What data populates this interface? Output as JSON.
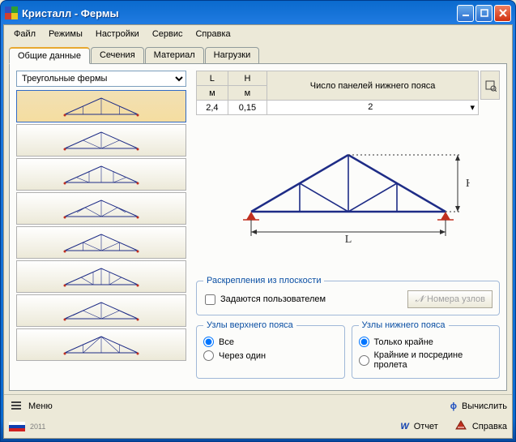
{
  "window": {
    "title": "Кристалл - Фермы"
  },
  "menu": [
    "Файл",
    "Режимы",
    "Настройки",
    "Сервис",
    "Справка"
  ],
  "tabs": {
    "items": [
      "Общие данные",
      "Сечения",
      "Материал",
      "Нагрузки"
    ],
    "active": 0
  },
  "truss_type_selected": "Треугольные фермы",
  "param_table": {
    "headers": [
      {
        "label": "L",
        "unit": "м"
      },
      {
        "label": "H",
        "unit": "м"
      },
      {
        "label": "Число панелей нижнего пояса"
      }
    ],
    "values": [
      "2,4",
      "0,15",
      "2"
    ]
  },
  "fasteners": {
    "group_label": "Раскрепления из плоскости",
    "user_defined_label": "Задаются пользователем",
    "user_defined": false,
    "node_numbers_btn": "Номера узлов"
  },
  "upper_chord": {
    "group_label": "Узлы верхнего пояса",
    "opts": [
      "Все",
      "Через один"
    ],
    "selected": 0
  },
  "lower_chord": {
    "group_label": "Узлы нижнего пояса",
    "opts": [
      "Только крайне",
      "Крайние и посредине пролета"
    ],
    "selected": 0
  },
  "status": {
    "menu": "Меню",
    "compute": "Вычислить",
    "report": "Отчет",
    "help": "Справка",
    "year": "2011"
  },
  "colors": {
    "truss_stroke": "#1e2c86",
    "support": "#c03020",
    "dim": "#303030"
  },
  "truss_list_count": 8,
  "truss_list_selected": 0
}
